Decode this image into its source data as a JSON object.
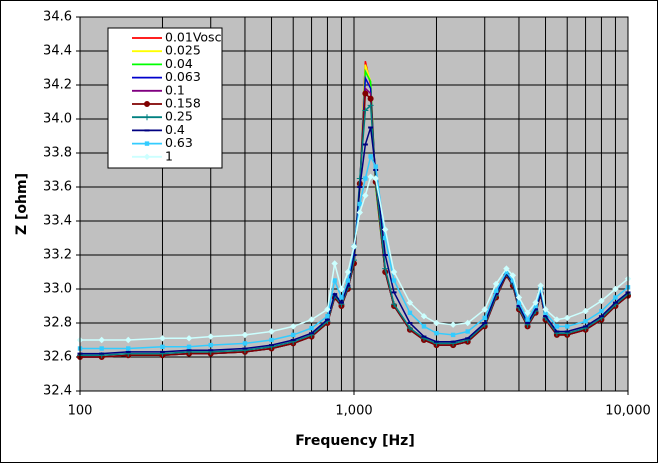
{
  "chart_data": {
    "type": "line",
    "x_label": "Frequency [Hz]",
    "y_label": "Z [ohm]",
    "xscale": "log",
    "grid": true,
    "legend": "upper-left",
    "xlim": [
      100,
      10000
    ],
    "xticks": [
      100,
      {
        "value": 1000,
        "label": "1,000"
      },
      {
        "value": 10000,
        "label": "10,000"
      }
    ],
    "xminorticks": [
      200,
      300,
      400,
      500,
      600,
      700,
      800,
      900,
      2000,
      3000,
      4000,
      5000,
      6000,
      7000,
      8000,
      9000
    ],
    "ylim": [
      32.4,
      34.6
    ],
    "yticks": [
      32.4,
      32.6,
      32.8,
      {
        "value": 33,
        "label": "33.0"
      },
      33.2,
      33.4,
      33.6,
      33.8,
      {
        "value": 34,
        "label": "34.0"
      },
      34.2,
      34.4,
      34.6
    ],
    "x": [
      100,
      120,
      150,
      200,
      250,
      300,
      400,
      500,
      600,
      700,
      800,
      850,
      900,
      950,
      1000,
      1050,
      1100,
      1150,
      1200,
      1300,
      1400,
      1600,
      1800,
      2000,
      2300,
      2600,
      3000,
      3300,
      3600,
      3800,
      4000,
      4300,
      4600,
      4800,
      5000,
      5500,
      6000,
      7000,
      8000,
      9000,
      10000
    ],
    "series": [
      {
        "name": "0.01Vosc",
        "color": "#ff0000",
        "marker": "none",
        "values": [
          32.6,
          32.6,
          32.61,
          32.61,
          32.62,
          32.62,
          32.63,
          32.65,
          32.68,
          32.72,
          32.8,
          32.95,
          32.9,
          33.0,
          33.15,
          33.6,
          34.34,
          34.2,
          33.6,
          33.1,
          32.9,
          32.76,
          32.7,
          32.67,
          32.67,
          32.69,
          32.78,
          32.95,
          33.08,
          33.02,
          32.88,
          32.78,
          32.86,
          32.97,
          32.82,
          32.73,
          32.73,
          32.76,
          32.82,
          32.9,
          32.96
        ]
      },
      {
        "name": "0.025",
        "color": "#ffff00",
        "marker": "none",
        "values": [
          32.6,
          32.6,
          32.61,
          32.61,
          32.62,
          32.62,
          32.63,
          32.65,
          32.68,
          32.72,
          32.8,
          32.95,
          32.9,
          33.0,
          33.15,
          33.6,
          34.32,
          34.22,
          33.6,
          33.1,
          32.9,
          32.76,
          32.7,
          32.67,
          32.67,
          32.69,
          32.78,
          32.95,
          33.08,
          33.02,
          32.88,
          32.78,
          32.86,
          32.97,
          32.82,
          32.73,
          32.73,
          32.76,
          32.82,
          32.9,
          32.96
        ]
      },
      {
        "name": "0.04",
        "color": "#00ff00",
        "marker": "none",
        "values": [
          32.6,
          32.6,
          32.61,
          32.61,
          32.62,
          32.62,
          32.63,
          32.65,
          32.68,
          32.72,
          32.8,
          32.95,
          32.9,
          33.0,
          33.15,
          33.6,
          34.28,
          34.22,
          33.6,
          33.1,
          32.9,
          32.76,
          32.7,
          32.67,
          32.67,
          32.69,
          32.78,
          32.95,
          33.08,
          33.02,
          32.88,
          32.78,
          32.86,
          32.97,
          32.82,
          32.73,
          32.73,
          32.76,
          32.82,
          32.9,
          32.96
        ]
      },
      {
        "name": "0.063",
        "color": "#0000cc",
        "marker": "none",
        "values": [
          32.6,
          32.6,
          32.61,
          32.61,
          32.62,
          32.62,
          32.63,
          32.65,
          32.68,
          32.72,
          32.8,
          32.95,
          32.9,
          33.0,
          33.15,
          33.62,
          34.24,
          34.18,
          33.62,
          33.1,
          32.9,
          32.76,
          32.7,
          32.67,
          32.67,
          32.69,
          32.78,
          32.95,
          33.08,
          33.02,
          32.88,
          32.78,
          32.86,
          32.97,
          32.82,
          32.73,
          32.73,
          32.76,
          32.82,
          32.9,
          32.96
        ]
      },
      {
        "name": "0.1",
        "color": "#800080",
        "marker": "none",
        "values": [
          32.6,
          32.6,
          32.61,
          32.61,
          32.62,
          32.62,
          32.63,
          32.65,
          32.68,
          32.72,
          32.8,
          32.95,
          32.9,
          33.0,
          33.15,
          33.62,
          34.18,
          34.15,
          33.62,
          33.1,
          32.9,
          32.76,
          32.7,
          32.67,
          32.67,
          32.69,
          32.78,
          32.95,
          33.08,
          33.02,
          32.88,
          32.78,
          32.86,
          32.97,
          32.82,
          32.73,
          32.73,
          32.76,
          32.82,
          32.9,
          32.96
        ]
      },
      {
        "name": "0.158",
        "color": "#800000",
        "marker": "circle",
        "values": [
          32.6,
          32.6,
          32.61,
          32.61,
          32.62,
          32.62,
          32.63,
          32.65,
          32.68,
          32.72,
          32.8,
          32.95,
          32.9,
          33.0,
          33.15,
          33.62,
          34.15,
          34.12,
          33.63,
          33.1,
          32.9,
          32.76,
          32.7,
          32.67,
          32.67,
          32.69,
          32.78,
          32.95,
          33.08,
          33.02,
          32.88,
          32.78,
          32.86,
          32.97,
          32.82,
          32.73,
          32.73,
          32.76,
          32.82,
          32.9,
          32.96
        ]
      },
      {
        "name": "0.25",
        "color": "#008080",
        "marker": "plus",
        "values": [
          32.61,
          32.61,
          32.62,
          32.62,
          32.63,
          32.63,
          32.64,
          32.66,
          32.69,
          32.73,
          32.81,
          32.96,
          32.91,
          33.01,
          33.17,
          33.65,
          34.05,
          34.08,
          33.65,
          33.12,
          32.91,
          32.77,
          32.71,
          32.68,
          32.68,
          32.7,
          32.79,
          32.96,
          33.09,
          33.03,
          32.89,
          32.79,
          32.87,
          32.98,
          32.83,
          32.74,
          32.74,
          32.77,
          32.83,
          32.91,
          32.97
        ]
      },
      {
        "name": "0.4",
        "color": "#000080",
        "marker": "dash",
        "values": [
          32.62,
          32.62,
          32.63,
          32.63,
          32.64,
          32.64,
          32.65,
          32.67,
          32.7,
          32.74,
          32.82,
          32.97,
          32.92,
          33.02,
          33.2,
          33.6,
          33.85,
          33.95,
          33.7,
          33.2,
          32.98,
          32.8,
          32.72,
          32.69,
          32.69,
          32.71,
          32.8,
          32.97,
          33.09,
          33.04,
          32.9,
          32.8,
          32.88,
          32.98,
          32.84,
          32.75,
          32.75,
          32.78,
          32.84,
          32.92,
          32.98
        ]
      },
      {
        "name": "0.63",
        "color": "#33ccff",
        "marker": "square",
        "values": [
          32.65,
          32.65,
          32.65,
          32.66,
          32.66,
          32.67,
          32.68,
          32.7,
          32.73,
          32.77,
          32.84,
          33.05,
          32.95,
          33.05,
          33.25,
          33.5,
          33.65,
          33.78,
          33.72,
          33.3,
          33.05,
          32.86,
          32.78,
          32.74,
          32.73,
          32.75,
          32.83,
          32.99,
          33.1,
          33.05,
          32.92,
          32.82,
          32.9,
          33.0,
          32.86,
          32.78,
          32.78,
          32.81,
          32.87,
          32.95,
          33.01
        ]
      },
      {
        "name": "1",
        "color": "#ccffff",
        "marker": "diamond",
        "values": [
          32.7,
          32.7,
          32.7,
          32.71,
          32.71,
          32.72,
          32.73,
          32.75,
          32.78,
          32.82,
          32.88,
          33.15,
          33.0,
          33.1,
          33.25,
          33.45,
          33.55,
          33.66,
          33.65,
          33.35,
          33.1,
          32.92,
          32.84,
          32.8,
          32.79,
          32.8,
          32.88,
          33.03,
          33.12,
          33.08,
          32.95,
          32.86,
          32.92,
          33.02,
          32.88,
          32.82,
          32.83,
          32.87,
          32.93,
          33.0,
          33.06
        ]
      }
    ]
  }
}
